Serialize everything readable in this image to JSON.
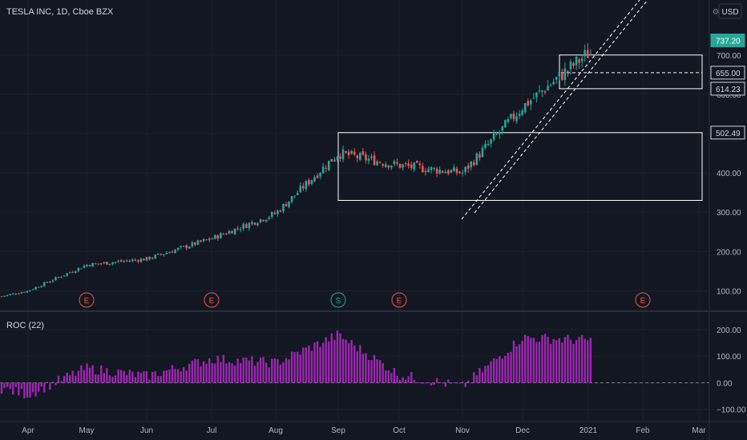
{
  "header": {
    "symbol_title": "TESLA INC, 1D, Cboe BZX",
    "currency": "USD"
  },
  "colors": {
    "background": "#131722",
    "up": "#26a69a",
    "down": "#ef5350",
    "roc": "#9c27b0",
    "grid": "#1e222d",
    "text": "#b2b5be",
    "last_price_bg": "#26a69a",
    "annotation": "#ffffff"
  },
  "chart_data": [
    {
      "type": "candlestick",
      "title": "TESLA INC, 1D, Cboe BZX",
      "ylim": [
        50,
        840
      ],
      "y_ticks": [
        100,
        200,
        300,
        400,
        500,
        600,
        700
      ],
      "y_tick_labels": [
        "100.00",
        "200.00",
        "300.00",
        "400.00",
        "500.00",
        "600.00",
        "700.00"
      ],
      "x_tick_labels": [
        "Apr",
        "May",
        "Jun",
        "Jul",
        "Aug",
        "Sep",
        "Oct",
        "Nov",
        "Dec",
        "2021",
        "Feb",
        "Mar"
      ],
      "grid": true,
      "last_price": "737.20",
      "price_labels": [
        "655.00",
        "614.23",
        "502.49"
      ],
      "closes_by_month": [
        {
          "month": "Apr",
          "close": 100
        },
        {
          "month": "May",
          "close": 166
        },
        {
          "month": "Jun",
          "close": 181
        },
        {
          "month": "Jul",
          "close": 233
        },
        {
          "month": "Aug",
          "close": 297
        },
        {
          "month": "Sep",
          "close": 450
        },
        {
          "month": "Oct",
          "close": 419
        },
        {
          "month": "Nov",
          "close": 400
        },
        {
          "month": "Dec",
          "close": 568
        },
        {
          "month": "2021",
          "close": 705
        }
      ],
      "event_markers": [
        {
          "label": "E",
          "date": "May"
        },
        {
          "label": "E",
          "date": "Jul"
        },
        {
          "label": "S",
          "date": "Sep"
        },
        {
          "label": "E",
          "date": "Oct"
        },
        {
          "label": "E",
          "date": "Feb"
        }
      ],
      "zones": [
        {
          "from_date": "Sep",
          "to_date": "Mar",
          "top": 502.49,
          "bottom": 330
        },
        {
          "from_date": "2021",
          "to_date": "Mar",
          "top": 700,
          "bottom": 614.23
        }
      ],
      "dashed_level": 655.0
    },
    {
      "type": "bar",
      "title": "ROC (22)",
      "ylim": [
        -140,
        260
      ],
      "y_ticks": [
        -100,
        0,
        100,
        200
      ],
      "y_tick_labels": [
        "−100.00",
        "0.00",
        "100.00",
        "200.00"
      ],
      "series": [
        {
          "name": "ROC (22)",
          "values_by_month": [
            {
              "month": "Apr",
              "value": -45
            },
            {
              "month": "May",
              "value": 55
            },
            {
              "month": "Jun",
              "value": 25
            },
            {
              "month": "Jul",
              "value": 90
            },
            {
              "month": "Aug",
              "value": 75
            },
            {
              "month": "Sep",
              "value": 180
            },
            {
              "month": "Oct",
              "value": 30
            },
            {
              "month": "Nov",
              "value": -15
            },
            {
              "month": "Dec",
              "value": 170
            },
            {
              "month": "2021",
              "value": 160
            }
          ]
        }
      ]
    }
  ]
}
